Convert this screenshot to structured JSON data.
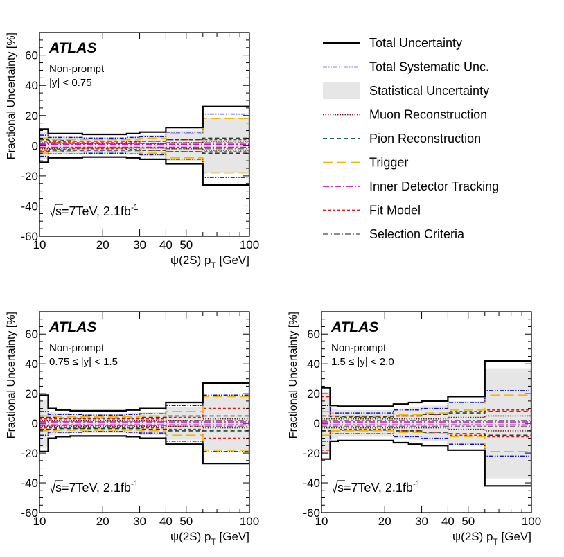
{
  "colors": {
    "total": "#000000",
    "total_syst": "#1010d0",
    "stat_fill": "#e6e6e6",
    "muon": "#7a1a1a",
    "pion": "#0f4a3a",
    "trigger": "#f5b800",
    "idtrack": "#cc10cc",
    "fit": "#ee1111",
    "selection": "#7a7a7a"
  },
  "legend": {
    "items": [
      {
        "label": "Total Uncertainty",
        "key": "total",
        "style": "solid",
        "width": 2.2
      },
      {
        "label": "Total Systematic Unc.",
        "key": "total_syst",
        "style": "dashdotdot",
        "width": 1.6
      },
      {
        "label": "Statistical Uncertainty",
        "key": "stat_fill",
        "style": "fill",
        "width": 0
      },
      {
        "label": "Muon Reconstruction",
        "key": "muon",
        "style": "dotted",
        "width": 1.8
      },
      {
        "label": "Pion Reconstruction",
        "key": "pion",
        "style": "dashed",
        "width": 1.8
      },
      {
        "label": "Trigger",
        "key": "trigger",
        "style": "longdash",
        "width": 1.8
      },
      {
        "label": "Inner Detector Tracking",
        "key": "idtrack",
        "style": "dashdot",
        "width": 1.8
      },
      {
        "label": "Fit Model",
        "key": "fit",
        "style": "shortdash",
        "width": 1.8
      },
      {
        "label": "Selection Criteria",
        "key": "selection",
        "style": "dashdot2",
        "width": 1.8
      }
    ]
  },
  "chart_data": [
    {
      "type": "step",
      "experiment": "ATLAS",
      "label_line1": "Non-prompt",
      "label_line2": "|y| < 0.75",
      "energy_label": "s=7TeV, 2.1fb",
      "energy_sup": "-1",
      "ylabel": "Fractional Uncertainty [%]",
      "xlabel_main": "ψ(2S) p",
      "xlabel_sub": "T",
      "xlabel_unit": " [GeV]",
      "xscale": "log",
      "xlim": [
        10,
        100
      ],
      "ylim": [
        -60,
        75
      ],
      "yticks": [
        -60,
        -40,
        -20,
        0,
        20,
        40,
        60
      ],
      "xtick_labels": [
        "10",
        "20",
        "30",
        "40",
        "50",
        "100"
      ],
      "bins": [
        10,
        11,
        12,
        14,
        16,
        18,
        22,
        26,
        30,
        40,
        60,
        100
      ],
      "total": [
        11,
        8,
        8,
        8,
        7.5,
        7.5,
        7.5,
        8,
        9,
        12,
        26
      ],
      "stat": [
        9,
        6,
        6,
        5.5,
        5.5,
        5.5,
        5.5,
        6,
        7,
        10,
        18
      ],
      "total_syst": [
        7,
        5.5,
        5.5,
        5.5,
        5,
        5,
        5,
        5.5,
        6,
        9,
        21
      ],
      "muon": [
        2,
        2,
        2,
        1.5,
        1.5,
        1.5,
        1.5,
        1.5,
        1.5,
        2,
        3
      ],
      "pion": [
        4,
        3.5,
        3.5,
        3,
        3,
        3,
        3,
        3,
        3,
        4,
        5
      ],
      "trigger": [
        5,
        4,
        4,
        4,
        4,
        4,
        4,
        4,
        5,
        8,
        18
      ],
      "idtrack": [
        1,
        1,
        1,
        1,
        1,
        1,
        1,
        1,
        1,
        1,
        1
      ],
      "fit": [
        3,
        2.5,
        2.5,
        2,
        2,
        2,
        2,
        2.5,
        3,
        4,
        4
      ],
      "selection": [
        1.5,
        1.5,
        1.5,
        1.5,
        1.5,
        1.5,
        1.5,
        1.5,
        1.5,
        2,
        2
      ]
    },
    {
      "type": "step",
      "experiment": "ATLAS",
      "label_line1": "Non-prompt",
      "label_line2": "0.75 ≤ |y| < 1.5",
      "energy_label": "s=7TeV, 2.1fb",
      "energy_sup": "-1",
      "ylabel": "Fractional Uncertainty [%]",
      "xlabel_main": "ψ(2S) p",
      "xlabel_sub": "T",
      "xlabel_unit": " [GeV]",
      "xscale": "log",
      "xlim": [
        10,
        100
      ],
      "ylim": [
        -60,
        75
      ],
      "yticks": [
        -60,
        -40,
        -20,
        0,
        20,
        40,
        60
      ],
      "xtick_labels": [
        "10",
        "20",
        "30",
        "40",
        "50",
        "100"
      ],
      "bins": [
        10,
        11,
        12,
        14,
        16,
        18,
        22,
        26,
        30,
        40,
        60,
        100
      ],
      "total": [
        19,
        10,
        9,
        8.5,
        8.5,
        8.5,
        8.5,
        9,
        10,
        14,
        27
      ],
      "stat": [
        16,
        8,
        7,
        6.5,
        6.5,
        6.5,
        6.5,
        7,
        8,
        11,
        18
      ],
      "total_syst": [
        8,
        6,
        6,
        6,
        5.5,
        5.5,
        5.5,
        6,
        6.5,
        12,
        19
      ],
      "muon": [
        2,
        2,
        2,
        2,
        2,
        2,
        2,
        2,
        2,
        2,
        3
      ],
      "pion": [
        4,
        4,
        3.5,
        3.5,
        3.5,
        3.5,
        3.5,
        3.5,
        4,
        5,
        5
      ],
      "trigger": [
        5,
        5,
        4.5,
        4.5,
        4.5,
        4.5,
        4.5,
        4.5,
        5,
        8,
        18
      ],
      "idtrack": [
        1,
        1,
        1,
        1,
        1,
        1,
        1,
        1,
        1,
        1,
        1
      ],
      "fit": [
        3,
        3,
        3,
        3,
        3,
        3,
        3,
        3,
        3,
        4,
        10
      ],
      "selection": [
        1.5,
        1.5,
        1.5,
        1.5,
        1.5,
        1.5,
        1.5,
        1.5,
        1.5,
        2,
        2
      ]
    },
    {
      "type": "step",
      "experiment": "ATLAS",
      "label_line1": "Non-prompt",
      "label_line2": "1.5 ≤ |y| < 2.0",
      "energy_label": "s=7TeV, 2.1fb",
      "energy_sup": "-1",
      "ylabel": "Fractional Uncertainty [%]",
      "xlabel_main": "ψ(2S) p",
      "xlabel_sub": "T",
      "xlabel_unit": " [GeV]",
      "xscale": "log",
      "xlim": [
        10,
        100
      ],
      "ylim": [
        -60,
        75
      ],
      "yticks": [
        -60,
        -40,
        -20,
        0,
        20,
        40,
        60
      ],
      "xtick_labels": [
        "10",
        "20",
        "30",
        "40",
        "50",
        "100"
      ],
      "bins": [
        10,
        11,
        12,
        14,
        16,
        18,
        22,
        26,
        30,
        40,
        60,
        100
      ],
      "total": [
        24,
        12,
        11.5,
        11.5,
        11.5,
        11.5,
        13,
        14,
        15,
        18,
        42
      ],
      "stat": [
        21,
        10,
        9,
        9,
        9,
        9,
        10,
        11,
        12,
        15,
        37
      ],
      "total_syst": [
        12,
        7,
        7,
        7,
        7,
        7,
        9,
        9,
        10,
        14,
        22
      ],
      "muon": [
        3,
        3,
        3,
        3,
        3,
        3,
        3,
        3,
        3,
        4,
        5
      ],
      "pion": [
        5,
        4.5,
        4.5,
        4.5,
        4.5,
        4.5,
        5,
        5,
        6,
        7,
        8
      ],
      "trigger": [
        8,
        5,
        5,
        5,
        5,
        5,
        6,
        6,
        7,
        9,
        19
      ],
      "idtrack": [
        1,
        1,
        1,
        1,
        1,
        1,
        1,
        1,
        1,
        1,
        1
      ],
      "fit": [
        18,
        5,
        4,
        4,
        4,
        4,
        5,
        5,
        6,
        8,
        9
      ],
      "selection": [
        2,
        2,
        2,
        2,
        2,
        2,
        2,
        2,
        2,
        2,
        2
      ]
    }
  ]
}
